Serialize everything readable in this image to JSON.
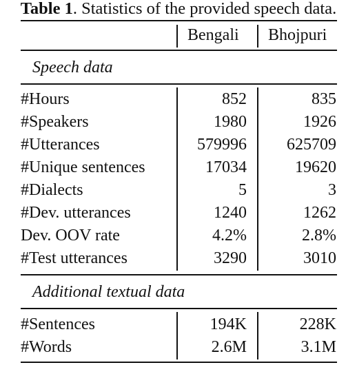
{
  "caption": {
    "label": "Table 1",
    "text": ". Statistics of the provided speech data."
  },
  "columns": [
    "Bengali",
    "Bhojpuri"
  ],
  "sections": [
    {
      "title": "Speech data",
      "rows": [
        {
          "label": "#Hours",
          "bengali": "852",
          "bhojpuri": "835"
        },
        {
          "label": "#Speakers",
          "bengali": "1980",
          "bhojpuri": "1926"
        },
        {
          "label": "#Utterances",
          "bengali": "579996",
          "bhojpuri": "625709"
        },
        {
          "label": "#Unique sentences",
          "bengali": "17034",
          "bhojpuri": "19620"
        },
        {
          "label": "#Dialects",
          "bengali": "5",
          "bhojpuri": "3"
        },
        {
          "label": "#Dev. utterances",
          "bengali": "1240",
          "bhojpuri": "1262"
        },
        {
          "label": "Dev. OOV rate",
          "bengali": "4.2%",
          "bhojpuri": "2.8%"
        },
        {
          "label": "#Test utterances",
          "bengali": "3290",
          "bhojpuri": "3010"
        }
      ]
    },
    {
      "title": "Additional textual data",
      "rows": [
        {
          "label": "#Sentences",
          "bengali": "194K",
          "bhojpuri": "228K"
        },
        {
          "label": "#Words",
          "bengali": "2.6M",
          "bhojpuri": "3.1M"
        }
      ]
    }
  ]
}
